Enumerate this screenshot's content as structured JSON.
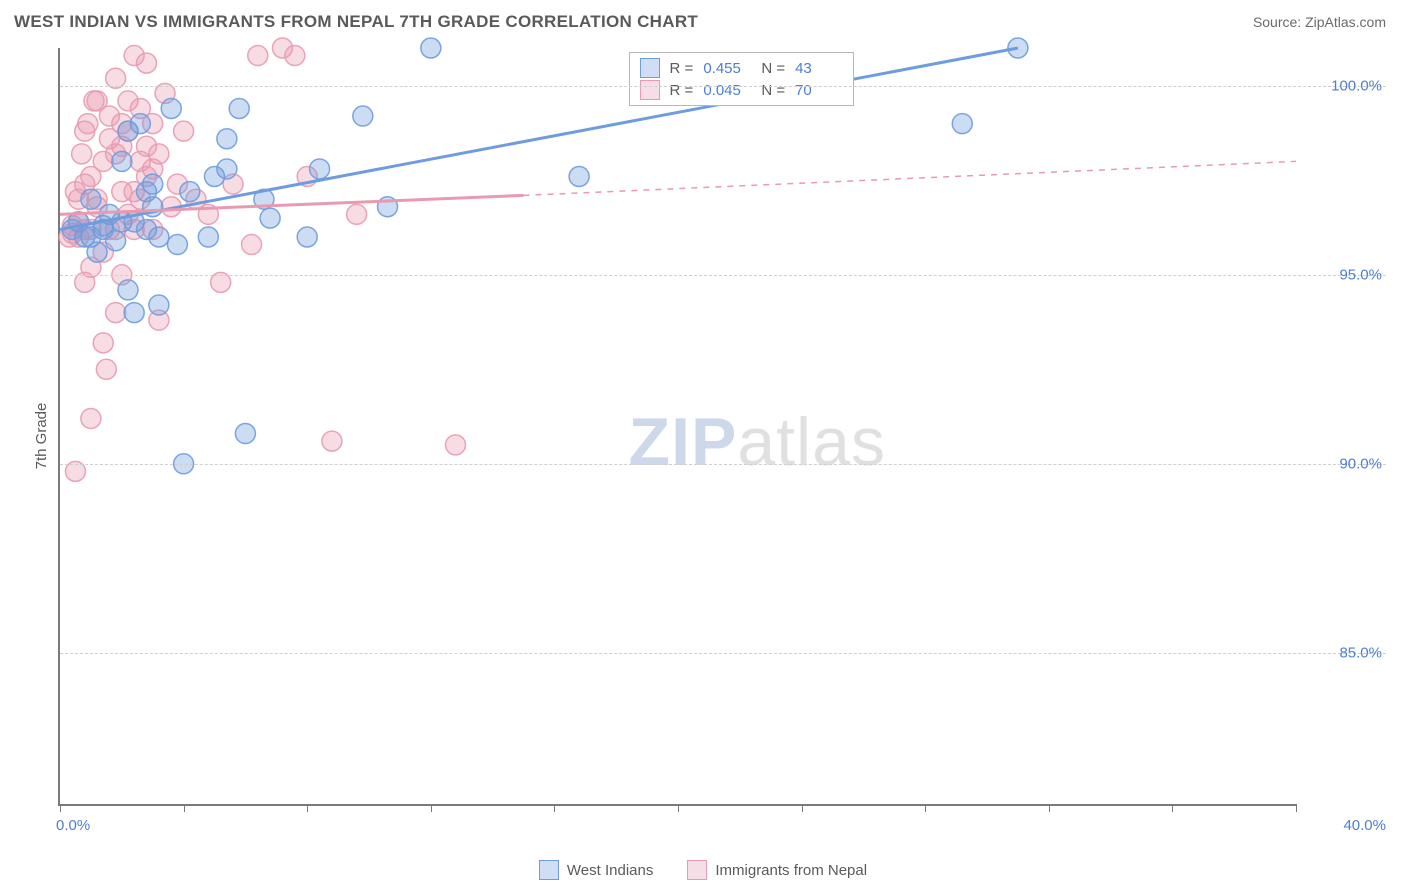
{
  "title": "WEST INDIAN VS IMMIGRANTS FROM NEPAL 7TH GRADE CORRELATION CHART",
  "source_label": "Source: ZipAtlas.com",
  "watermark": {
    "part1": "ZIP",
    "part2": "atlas"
  },
  "y_axis": {
    "title": "7th Grade"
  },
  "chart": {
    "type": "scatter",
    "background_color": "#ffffff",
    "grid_color": "#cfcfcf",
    "axis_color": "#7a7a7a",
    "xlim": [
      0,
      40
    ],
    "ylim": [
      81,
      101
    ],
    "x_ticks": [
      0,
      4,
      8,
      12,
      16,
      20,
      24,
      28,
      32,
      36,
      40
    ],
    "x_start_label": "0.0%",
    "x_end_label": "40.0%",
    "y_ticks": [
      {
        "v": 100,
        "label": "100.0%"
      },
      {
        "v": 95,
        "label": "95.0%"
      },
      {
        "v": 90,
        "label": "90.0%"
      },
      {
        "v": 85,
        "label": "85.0%"
      }
    ],
    "marker_radius": 10,
    "marker_fill_opacity": 0.35,
    "marker_stroke_opacity": 0.9,
    "trend_width": 3,
    "series": [
      {
        "name": "West Indians",
        "color": "#6e9cde",
        "stats": {
          "r": "0.455",
          "n": "43"
        },
        "trend_solid": {
          "x1": 0,
          "y1": 96.2,
          "x2": 31,
          "y2": 101
        },
        "trend_dashed": null,
        "points": [
          [
            0.4,
            96.2
          ],
          [
            0.6,
            96.4
          ],
          [
            0.8,
            96.0
          ],
          [
            1.0,
            96.0
          ],
          [
            1.0,
            97.0
          ],
          [
            1.2,
            95.6
          ],
          [
            1.4,
            96.2
          ],
          [
            1.4,
            96.3
          ],
          [
            1.6,
            96.6
          ],
          [
            1.8,
            95.9
          ],
          [
            2.0,
            96.4
          ],
          [
            2.0,
            98.0
          ],
          [
            2.2,
            98.8
          ],
          [
            2.2,
            94.6
          ],
          [
            2.4,
            94.0
          ],
          [
            2.4,
            96.4
          ],
          [
            2.6,
            99.0
          ],
          [
            2.8,
            96.2
          ],
          [
            2.8,
            97.2
          ],
          [
            3.0,
            97.4
          ],
          [
            3.0,
            96.8
          ],
          [
            3.2,
            96.0
          ],
          [
            3.2,
            94.2
          ],
          [
            3.6,
            99.4
          ],
          [
            3.8,
            95.8
          ],
          [
            4.0,
            90.0
          ],
          [
            4.2,
            97.2
          ],
          [
            4.8,
            96.0
          ],
          [
            5.0,
            97.6
          ],
          [
            5.4,
            98.6
          ],
          [
            5.4,
            97.8
          ],
          [
            5.8,
            99.4
          ],
          [
            6.0,
            90.8
          ],
          [
            6.6,
            97.0
          ],
          [
            6.8,
            96.5
          ],
          [
            8.0,
            96.0
          ],
          [
            8.4,
            97.8
          ],
          [
            9.8,
            99.2
          ],
          [
            10.6,
            96.8
          ],
          [
            12.0,
            101.0
          ],
          [
            16.8,
            97.6
          ],
          [
            29.2,
            99.0
          ],
          [
            31.0,
            101.0
          ]
        ]
      },
      {
        "name": "Immigrants from Nepal",
        "color": "#e89ab0",
        "stats": {
          "r": "0.045",
          "n": "70"
        },
        "trend_solid": {
          "x1": 0,
          "y1": 96.6,
          "x2": 15,
          "y2": 97.1
        },
        "trend_dashed": {
          "x1": 15,
          "y1": 97.1,
          "x2": 40,
          "y2": 98.0
        },
        "points": [
          [
            0.3,
            96.0
          ],
          [
            0.4,
            96.1
          ],
          [
            0.4,
            96.3
          ],
          [
            0.5,
            97.2
          ],
          [
            0.6,
            96.4
          ],
          [
            0.6,
            97.0
          ],
          [
            0.6,
            96.0
          ],
          [
            0.7,
            98.2
          ],
          [
            0.8,
            96.2
          ],
          [
            0.8,
            97.4
          ],
          [
            0.8,
            98.8
          ],
          [
            0.8,
            94.8
          ],
          [
            0.9,
            99.0
          ],
          [
            1.0,
            95.2
          ],
          [
            1.0,
            96.2
          ],
          [
            1.0,
            97.6
          ],
          [
            1.0,
            91.2
          ],
          [
            1.1,
            99.6
          ],
          [
            1.2,
            96.8
          ],
          [
            1.2,
            99.6
          ],
          [
            1.2,
            97.0
          ],
          [
            1.4,
            93.2
          ],
          [
            1.4,
            95.6
          ],
          [
            1.4,
            98.0
          ],
          [
            1.5,
            92.5
          ],
          [
            1.6,
            96.2
          ],
          [
            1.6,
            98.6
          ],
          [
            1.6,
            99.2
          ],
          [
            1.8,
            98.2
          ],
          [
            1.8,
            100.2
          ],
          [
            1.8,
            96.2
          ],
          [
            1.8,
            94.0
          ],
          [
            2.0,
            97.2
          ],
          [
            2.0,
            98.4
          ],
          [
            2.0,
            99.0
          ],
          [
            2.0,
            95.0
          ],
          [
            2.2,
            98.8
          ],
          [
            2.2,
            96.6
          ],
          [
            2.2,
            99.6
          ],
          [
            2.4,
            97.2
          ],
          [
            2.4,
            100.8
          ],
          [
            2.4,
            96.2
          ],
          [
            2.6,
            98.0
          ],
          [
            2.6,
            99.4
          ],
          [
            2.6,
            97.0
          ],
          [
            2.8,
            97.6
          ],
          [
            2.8,
            100.6
          ],
          [
            2.8,
            98.4
          ],
          [
            3.0,
            96.2
          ],
          [
            3.0,
            99.0
          ],
          [
            3.0,
            97.8
          ],
          [
            3.2,
            98.2
          ],
          [
            3.2,
            93.8
          ],
          [
            3.4,
            99.8
          ],
          [
            3.6,
            96.8
          ],
          [
            3.8,
            97.4
          ],
          [
            4.0,
            98.8
          ],
          [
            4.4,
            97.0
          ],
          [
            4.8,
            96.6
          ],
          [
            5.2,
            94.8
          ],
          [
            5.6,
            97.4
          ],
          [
            6.2,
            95.8
          ],
          [
            6.4,
            100.8
          ],
          [
            7.2,
            101.0
          ],
          [
            7.6,
            100.8
          ],
          [
            8.0,
            97.6
          ],
          [
            8.8,
            90.6
          ],
          [
            9.6,
            96.6
          ],
          [
            12.8,
            90.5
          ],
          [
            0.5,
            89.8
          ]
        ]
      }
    ]
  },
  "legend_bottom": [
    {
      "label": "West Indians",
      "color": "#6e9cde"
    },
    {
      "label": "Immigrants from Nepal",
      "color": "#e89ab0"
    }
  ]
}
